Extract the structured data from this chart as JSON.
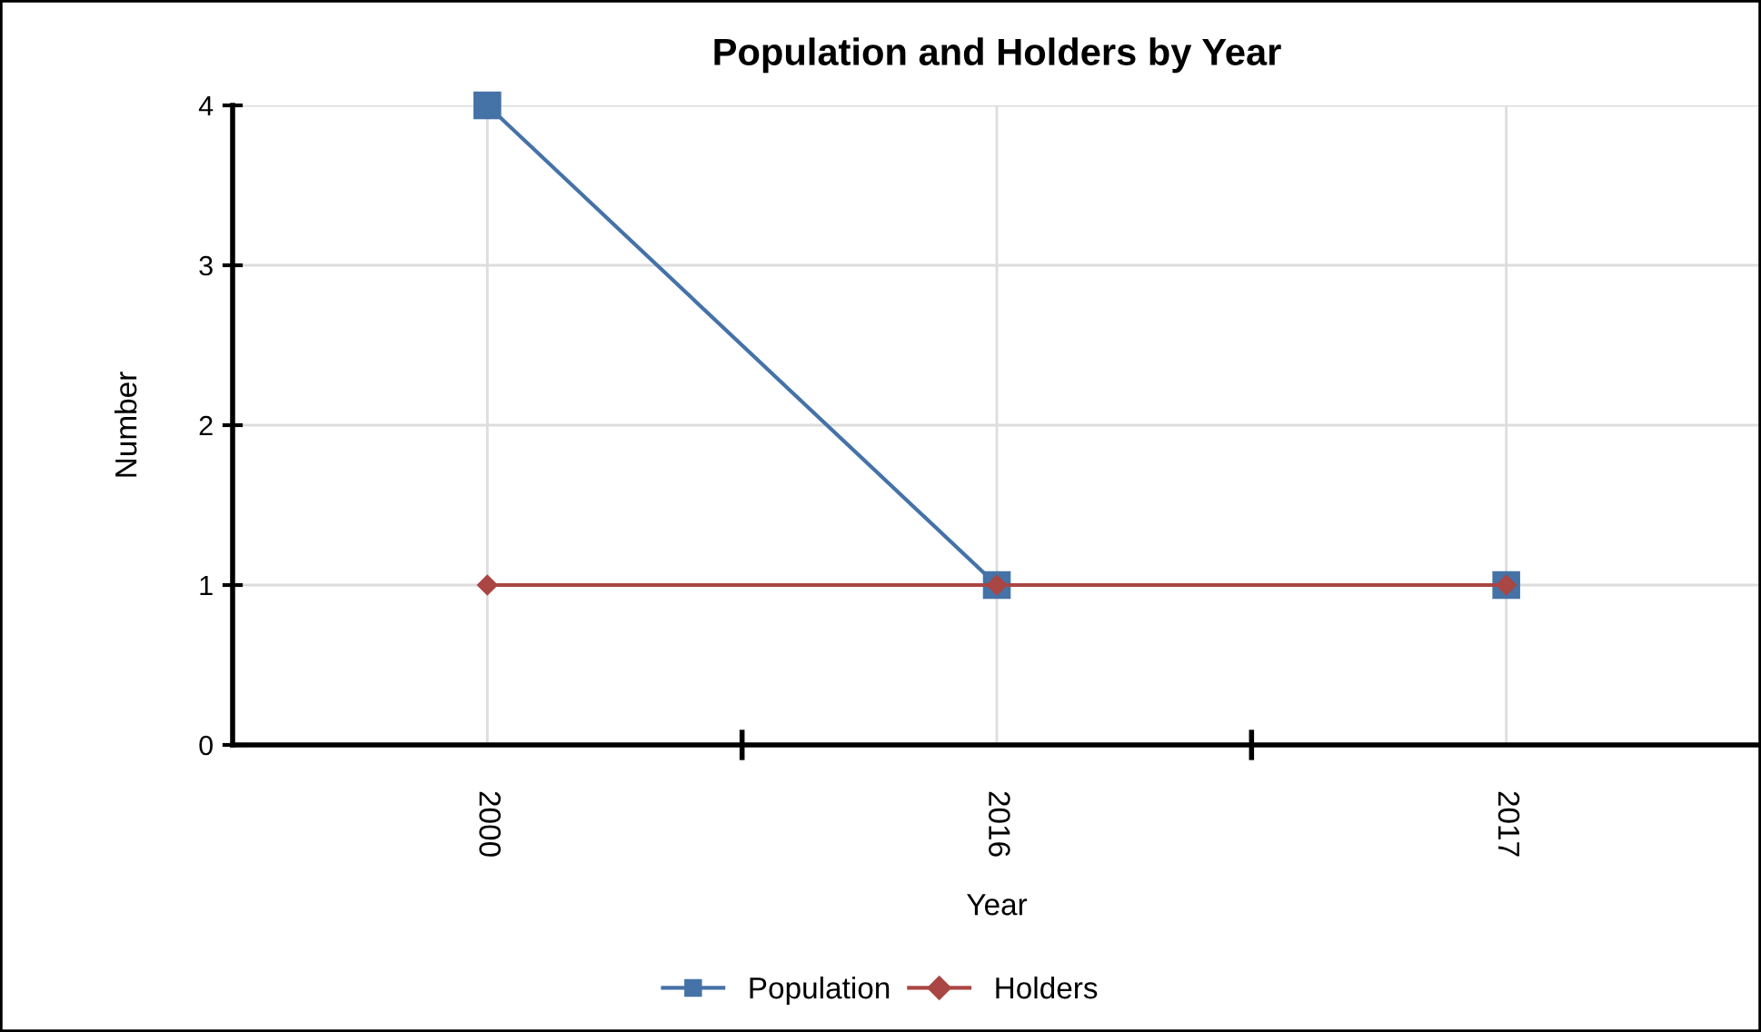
{
  "chart_data": {
    "type": "line",
    "title": "Population and Holders by Year",
    "xlabel": "Year",
    "ylabel": "Number",
    "categories": [
      "2000",
      "2016",
      "2017"
    ],
    "series": [
      {
        "name": "Population",
        "color": "#4572a7",
        "marker": "square",
        "values": [
          4,
          1,
          1
        ]
      },
      {
        "name": "Holders",
        "color": "#aa4643",
        "marker": "diamond",
        "values": [
          1,
          1,
          1
        ]
      }
    ],
    "ylim": [
      0,
      4
    ],
    "yticks": [
      0,
      1,
      2,
      3,
      4
    ],
    "grid": true,
    "legend": "bottom"
  }
}
